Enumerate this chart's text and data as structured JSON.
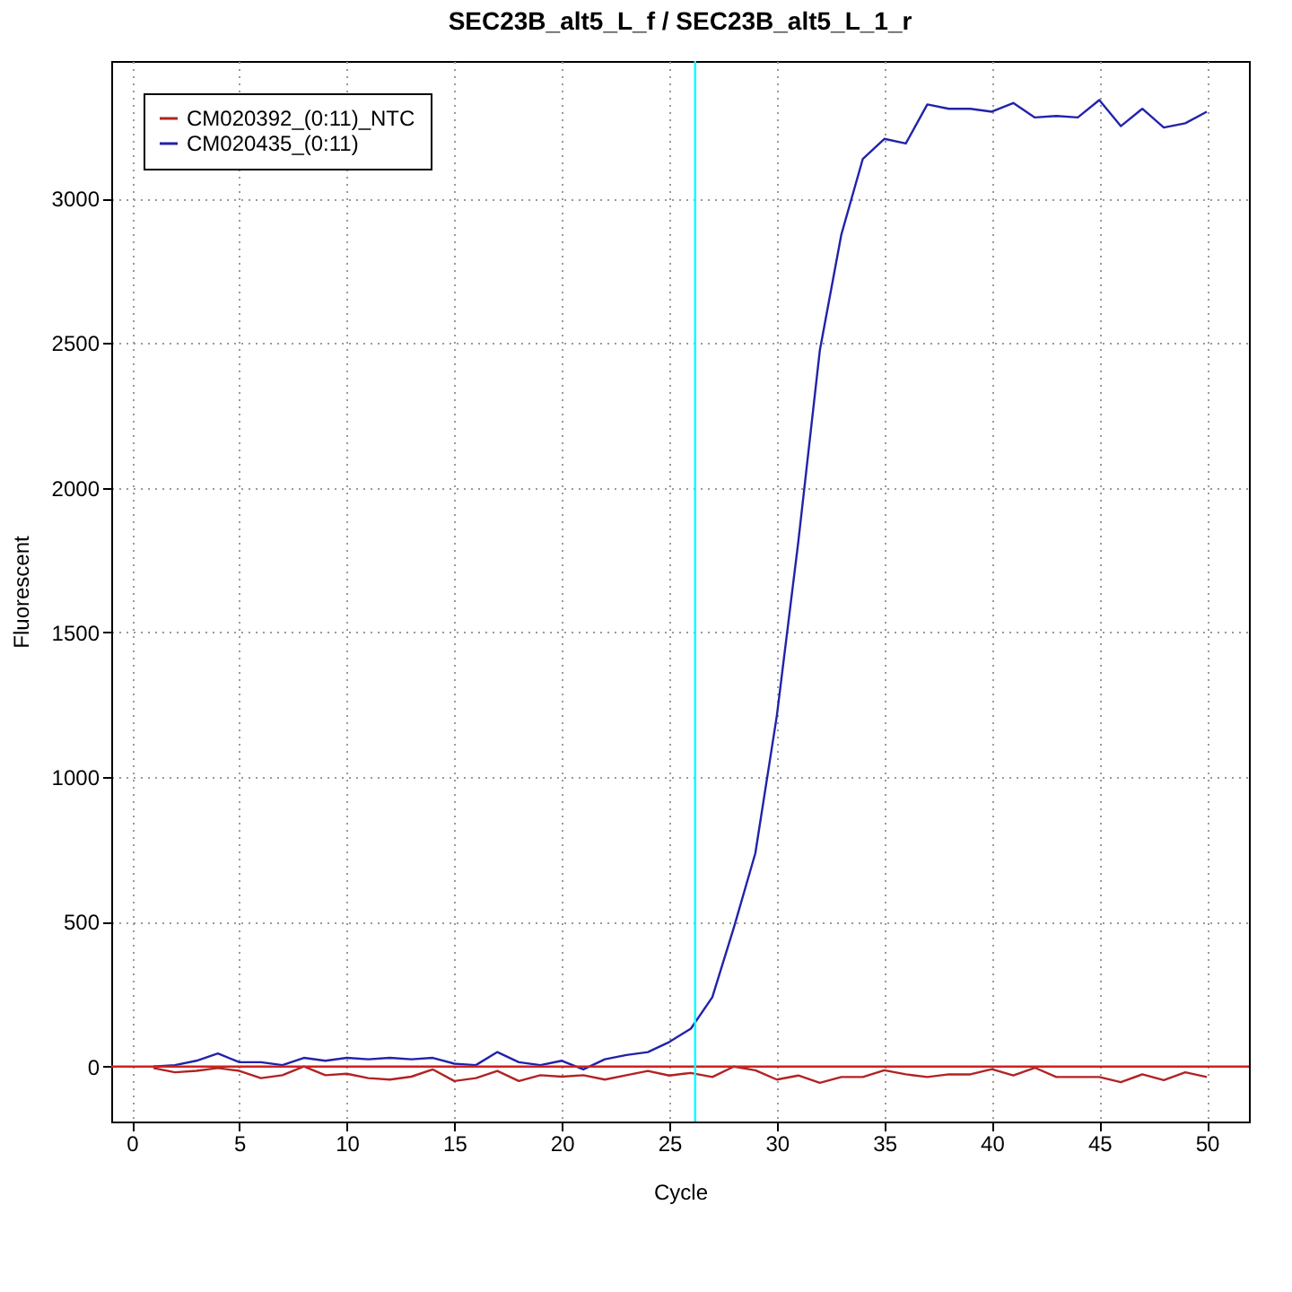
{
  "chart_data": {
    "type": "line",
    "title": "SEC23B_alt5_L_f / SEC23B_alt5_L_1_r",
    "xlabel": "Cycle",
    "ylabel": "Fluorescent",
    "x": [
      1,
      2,
      3,
      4,
      5,
      6,
      7,
      8,
      9,
      10,
      11,
      12,
      13,
      14,
      15,
      16,
      17,
      18,
      19,
      20,
      21,
      22,
      23,
      24,
      25,
      26,
      27,
      28,
      29,
      30,
      31,
      32,
      33,
      34,
      35,
      36,
      37,
      38,
      39,
      40,
      41,
      42,
      43,
      44,
      45,
      46,
      47,
      48,
      49,
      50
    ],
    "series": [
      {
        "name": "CM020392_(0:11)_NTC",
        "color": "#b22222",
        "values": [
          -5,
          -20,
          -15,
          -5,
          -15,
          -40,
          -30,
          0,
          -30,
          -25,
          -40,
          -45,
          -35,
          -10,
          -50,
          -40,
          -15,
          -50,
          -30,
          -35,
          -30,
          -45,
          -30,
          -15,
          -31,
          -22,
          -36,
          0,
          -13,
          -45,
          -31,
          -56,
          -36,
          -36,
          -13,
          -27,
          -36,
          -27,
          -27,
          -9,
          -31,
          -4,
          -36,
          -36,
          -36,
          -54,
          -27,
          -47,
          -20,
          -36
        ]
      },
      {
        "name": "CM020435_(0:11)",
        "color": "#2222aa",
        "values": [
          0,
          5,
          20,
          45,
          15,
          15,
          5,
          30,
          20,
          30,
          25,
          30,
          25,
          30,
          10,
          5,
          50,
          15,
          5,
          20,
          -10,
          25,
          40,
          50,
          85,
          131,
          240,
          480,
          737,
          1212,
          1814,
          2475,
          2875,
          3137,
          3206,
          3190,
          3325,
          3310,
          3310,
          3300,
          3330,
          3280,
          3285,
          3280,
          3340,
          3250,
          3310,
          3245,
          3260,
          3300
        ]
      }
    ],
    "xlim": [
      -0.96,
      51.96
    ],
    "xticks": [
      0,
      5,
      10,
      15,
      20,
      25,
      30,
      35,
      40,
      45,
      50
    ],
    "ylim": [
      -190,
      3475
    ],
    "yticks": [
      0,
      500,
      1000,
      1500,
      2000,
      2500,
      3000
    ],
    "ref_lines": [
      {
        "axis": "y",
        "value": 0,
        "color": "#cc2222"
      },
      {
        "axis": "x",
        "value": 26.2,
        "color": "#00ffff"
      }
    ],
    "grid": true,
    "legend": "top left",
    "line_style": "solid",
    "marker": "none"
  }
}
